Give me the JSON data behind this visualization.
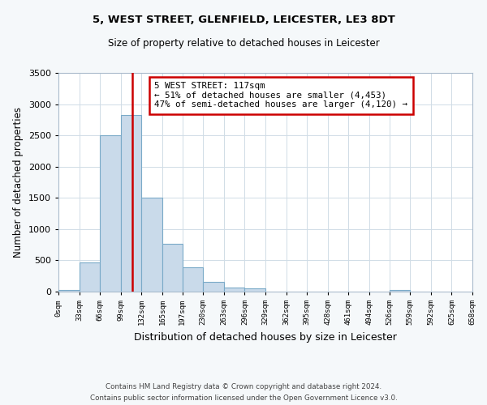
{
  "title1": "5, WEST STREET, GLENFIELD, LEICESTER, LE3 8DT",
  "title2": "Size of property relative to detached houses in Leicester",
  "xlabel": "Distribution of detached houses by size in Leicester",
  "ylabel": "Number of detached properties",
  "bin_edges": [
    0,
    33,
    66,
    99,
    132,
    165,
    197,
    230,
    263,
    296,
    329,
    362,
    395,
    428,
    461,
    494,
    526,
    559,
    592,
    625,
    658
  ],
  "bar_heights": [
    20,
    470,
    2500,
    2820,
    1500,
    760,
    395,
    150,
    70,
    55,
    0,
    0,
    0,
    0,
    0,
    0,
    20,
    0,
    0,
    0
  ],
  "bar_color": "#c9daea",
  "bar_edge_color": "#7aaac8",
  "vline_x": 117,
  "vline_color": "#cc0000",
  "annotation_text": "5 WEST STREET: 117sqm\n← 51% of detached houses are smaller (4,453)\n47% of semi-detached houses are larger (4,120) →",
  "annotation_box_facecolor": "#ffffff",
  "annotation_box_edgecolor": "#cc0000",
  "ylim": [
    0,
    3500
  ],
  "yticks": [
    0,
    500,
    1000,
    1500,
    2000,
    2500,
    3000,
    3500
  ],
  "tick_labels": [
    "0sqm",
    "33sqm",
    "66sqm",
    "99sqm",
    "132sqm",
    "165sqm",
    "197sqm",
    "230sqm",
    "263sqm",
    "296sqm",
    "329sqm",
    "362sqm",
    "395sqm",
    "428sqm",
    "461sqm",
    "494sqm",
    "526sqm",
    "559sqm",
    "592sqm",
    "625sqm",
    "658sqm"
  ],
  "footer1": "Contains HM Land Registry data © Crown copyright and database right 2024.",
  "footer2": "Contains public sector information licensed under the Open Government Licence v3.0.",
  "fig_facecolor": "#f5f8fa",
  "plot_facecolor": "#ffffff",
  "grid_color": "#d0dce6"
}
